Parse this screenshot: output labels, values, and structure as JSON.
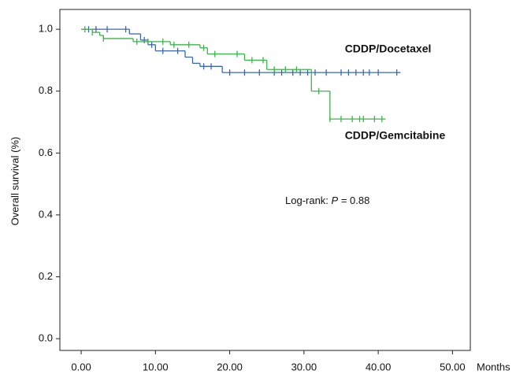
{
  "chart_data": {
    "type": "step",
    "x_label": "Months",
    "y_label": "Overall survival (%)",
    "xlim": [
      -2.87,
      52.4
    ],
    "ylim": [
      -0.038,
      1.064
    ],
    "xticks": [
      {
        "value": 0,
        "label": "0.00"
      },
      {
        "value": 10,
        "label": "10.00"
      },
      {
        "value": 20,
        "label": "20.00"
      },
      {
        "value": 30,
        "label": "30.00"
      },
      {
        "value": 40,
        "label": "40.00"
      },
      {
        "value": 50,
        "label": "50.00"
      }
    ],
    "yticks": [
      {
        "value": 0,
        "label": "0.0"
      },
      {
        "value": 0.2,
        "label": "0.2"
      },
      {
        "value": 0.4,
        "label": "0.4"
      },
      {
        "value": 0.6,
        "label": "0.6"
      },
      {
        "value": 0.8,
        "label": "0.8"
      },
      {
        "value": 1,
        "label": "1.0"
      }
    ],
    "grid": false,
    "series": [
      {
        "name": "CDDP/Docetaxel",
        "color": "#3b67b0",
        "x": [
          0,
          6.5,
          8,
          9,
          10,
          14,
          15,
          16,
          19,
          43
        ],
        "values": [
          1.0,
          0.985,
          0.965,
          0.95,
          0.93,
          0.91,
          0.89,
          0.88,
          0.86,
          0.86
        ],
        "censor_x": [
          1,
          2,
          3.5,
          6,
          8.5,
          9.5,
          11,
          13,
          16.5,
          17.5,
          20,
          22,
          24,
          26,
          27,
          28.5,
          29.5,
          30.5,
          31.5,
          33,
          35,
          36,
          37,
          38,
          38.8,
          40,
          42.5
        ],
        "censor_y": [
          1.0,
          1.0,
          1.0,
          1.0,
          0.965,
          0.95,
          0.93,
          0.93,
          0.88,
          0.88,
          0.86,
          0.86,
          0.86,
          0.86,
          0.86,
          0.86,
          0.86,
          0.86,
          0.86,
          0.86,
          0.86,
          0.86,
          0.86,
          0.86,
          0.86,
          0.86,
          0.86
        ]
      },
      {
        "name": "CDDP/Gemcitabine",
        "color": "#3db44a",
        "x": [
          0,
          1.5,
          2.5,
          3,
          7,
          12,
          16,
          17,
          22,
          25,
          31,
          33.5,
          41
        ],
        "values": [
          1.0,
          0.99,
          0.98,
          0.97,
          0.96,
          0.95,
          0.94,
          0.92,
          0.9,
          0.87,
          0.8,
          0.71,
          0.71
        ],
        "censor_x": [
          0.5,
          1.5,
          3,
          7.5,
          9,
          11,
          12.5,
          14.5,
          16.5,
          18,
          21,
          23,
          24.5,
          26,
          27.5,
          29,
          32,
          33.5,
          35,
          36.5,
          37.5,
          38,
          39.5,
          40.5
        ],
        "censor_y": [
          1.0,
          0.99,
          0.97,
          0.96,
          0.96,
          0.96,
          0.95,
          0.95,
          0.94,
          0.92,
          0.92,
          0.9,
          0.9,
          0.87,
          0.87,
          0.87,
          0.8,
          0.71,
          0.71,
          0.71,
          0.71,
          0.71,
          0.71,
          0.71
        ]
      }
    ],
    "annotations": [
      {
        "text": "CDDP/Docetaxel",
        "x": 35.5,
        "y": 0.935
      },
      {
        "text": "CDDP/Gemcitabine",
        "x": 35.5,
        "y": 0.655
      }
    ],
    "log_rank": {
      "prefix": "Log-rank: ",
      "italic": "P",
      "suffix": " = 0.88"
    }
  }
}
